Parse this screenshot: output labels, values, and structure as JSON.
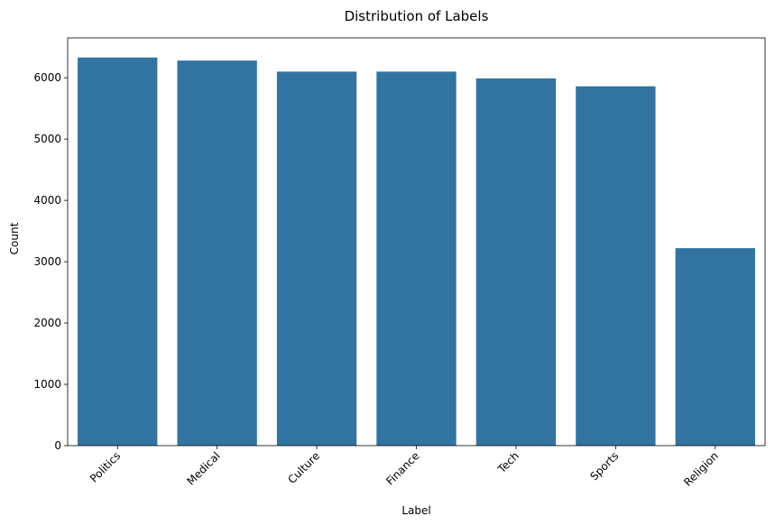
{
  "chart_data": {
    "type": "bar",
    "title": "Distribution of Labels",
    "xlabel": "Label",
    "ylabel": "Count",
    "categories": [
      "Politics",
      "Medical",
      "Culture",
      "Finance",
      "Tech",
      "Sports",
      "Religion"
    ],
    "values": [
      6330,
      6280,
      6100,
      6100,
      5990,
      5860,
      3220
    ],
    "ylim": [
      0,
      6650
    ],
    "yticks": [
      0,
      1000,
      2000,
      3000,
      4000,
      5000,
      6000
    ],
    "bar_color": "#3274a1",
    "grid": false,
    "x_tick_rotation_deg": 45
  }
}
